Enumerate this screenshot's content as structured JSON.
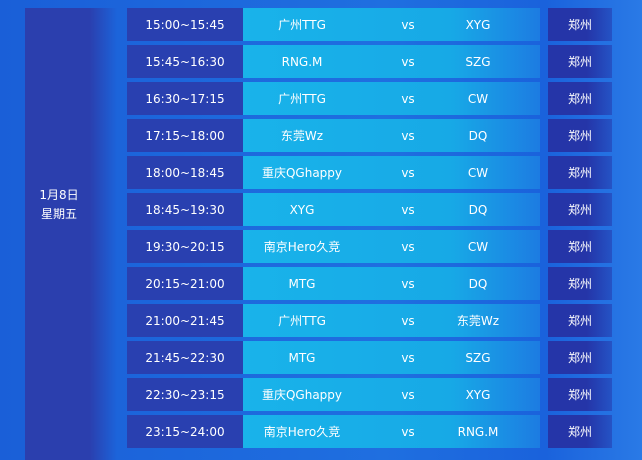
{
  "date": {
    "day": "1月8日",
    "weekday": "星期五"
  },
  "matches": [
    {
      "time": "15:00~15:45",
      "team1": "广州TTG",
      "vs": "vs",
      "team2": "XYG",
      "location": "郑州"
    },
    {
      "time": "15:45~16:30",
      "team1": "RNG.M",
      "vs": "vs",
      "team2": "SZG",
      "location": "郑州"
    },
    {
      "time": "16:30~17:15",
      "team1": "广州TTG",
      "vs": "vs",
      "team2": "CW",
      "location": "郑州"
    },
    {
      "time": "17:15~18:00",
      "team1": "东莞Wz",
      "vs": "vs",
      "team2": "DQ",
      "location": "郑州"
    },
    {
      "time": "18:00~18:45",
      "team1": "重庆QGhappy",
      "vs": "vs",
      "team2": "CW",
      "location": "郑州"
    },
    {
      "time": "18:45~19:30",
      "team1": "XYG",
      "vs": "vs",
      "team2": "DQ",
      "location": "郑州"
    },
    {
      "time": "19:30~20:15",
      "team1": "南京Hero久竞",
      "vs": "vs",
      "team2": "CW",
      "location": "郑州"
    },
    {
      "time": "20:15~21:00",
      "team1": "MTG",
      "vs": "vs",
      "team2": "DQ",
      "location": "郑州"
    },
    {
      "time": "21:00~21:45",
      "team1": "广州TTG",
      "vs": "vs",
      "team2": "东莞Wz",
      "location": "郑州"
    },
    {
      "time": "21:45~22:30",
      "team1": "MTG",
      "vs": "vs",
      "team2": "SZG",
      "location": "郑州"
    },
    {
      "time": "22:30~23:15",
      "team1": "重庆QGhappy",
      "vs": "vs",
      "team2": "XYG",
      "location": "郑州"
    },
    {
      "time": "23:15~24:00",
      "team1": "南京Hero久竞",
      "vs": "vs",
      "team2": "RNG.M",
      "location": "郑州"
    }
  ]
}
